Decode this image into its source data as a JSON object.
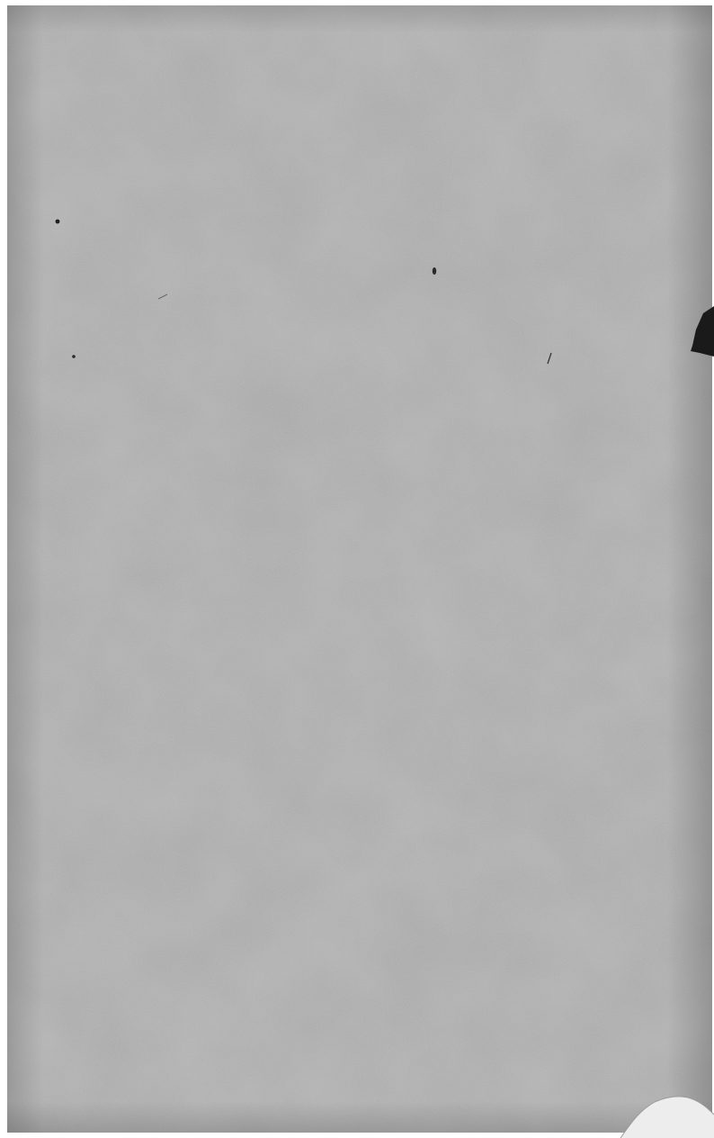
{
  "page": {
    "paper_color": "#a9a9a9",
    "border_color": "#ffffff",
    "ink_color": "#1e1e1e"
  }
}
